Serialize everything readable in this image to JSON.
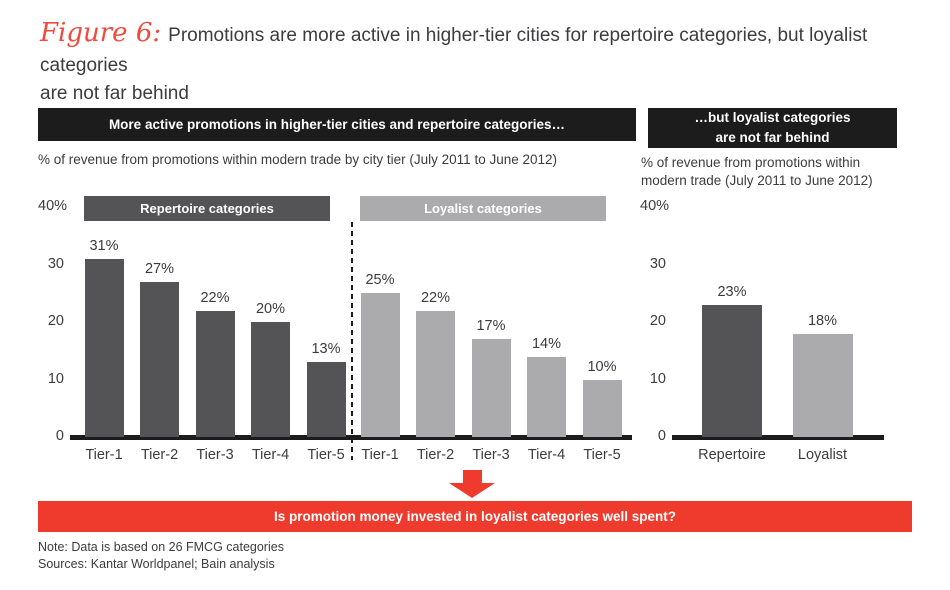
{
  "figure": {
    "label": "Figure 6:",
    "title_lines": [
      "Promotions are more active in higher-tier cities for repertoire categories, but loyalist categories",
      "are not far behind"
    ]
  },
  "right_panel": {
    "header_lines": [
      "…but loyalist categories",
      "are not far behind"
    ],
    "subtitle_lines": [
      "% of revenue from promotions within",
      "modern trade (July 2011 to June 2012)"
    ]
  },
  "chart_data": [
    {
      "type": "bar",
      "panel": "left",
      "title": "More active promotions in higher-tier cities and repertoire categories…",
      "subtitle": "% of revenue from promotions within modern trade by city tier (July 2011 to June 2012)",
      "ylim": [
        0,
        40
      ],
      "y_ticks": [
        {
          "label": "0",
          "value": 0
        },
        {
          "label": "10",
          "value": 10
        },
        {
          "label": "20",
          "value": 20
        },
        {
          "label": "30",
          "value": 30
        },
        {
          "label": "40%",
          "value": 40
        }
      ],
      "groups": [
        {
          "label": "Repertoire categories",
          "color": "#545456",
          "categories": [
            "Tier-1",
            "Tier-2",
            "Tier-3",
            "Tier-4",
            "Tier-5"
          ],
          "values": [
            31,
            27,
            22,
            20,
            13
          ],
          "value_labels": [
            "31%",
            "27%",
            "22%",
            "20%",
            "13%"
          ]
        },
        {
          "label": "Loyalist categories",
          "color": "#ababad",
          "categories": [
            "Tier-1",
            "Tier-2",
            "Tier-3",
            "Tier-4",
            "Tier-5"
          ],
          "values": [
            25,
            22,
            17,
            14,
            10
          ],
          "value_labels": [
            "25%",
            "22%",
            "17%",
            "14%",
            "10%"
          ]
        }
      ],
      "separator": "dashed-vertical-line-between-groups",
      "grid": false
    },
    {
      "type": "bar",
      "panel": "right",
      "title": "…but loyalist categories are not far behind",
      "subtitle": "% of revenue from promotions within modern trade (July 2011 to June 2012)",
      "ylim": [
        0,
        40
      ],
      "y_ticks": [
        {
          "label": "0",
          "value": 0
        },
        {
          "label": "10",
          "value": 10
        },
        {
          "label": "20",
          "value": 20
        },
        {
          "label": "30",
          "value": 30
        },
        {
          "label": "40%",
          "value": 40
        }
      ],
      "categories": [
        "Repertoire",
        "Loyalist"
      ],
      "values": [
        23,
        18
      ],
      "value_labels": [
        "23%",
        "18%"
      ],
      "colors": [
        "#545456",
        "#ababad"
      ],
      "grid": false
    }
  ],
  "callout": {
    "text": "Is promotion money invested in loyalist categories well spent?"
  },
  "footnotes": {
    "note": "Note: Data is based on 26 FMCG categories",
    "sources": "Sources: Kantar Worldpanel; Bain analysis"
  },
  "palette": {
    "header_black": "#1c1c1c",
    "dark_bar": "#545456",
    "light_bar": "#ababad",
    "accent_red": "#ee3b2d",
    "figure_label_red": "#f04a3c",
    "text": "#3c3c3e"
  }
}
